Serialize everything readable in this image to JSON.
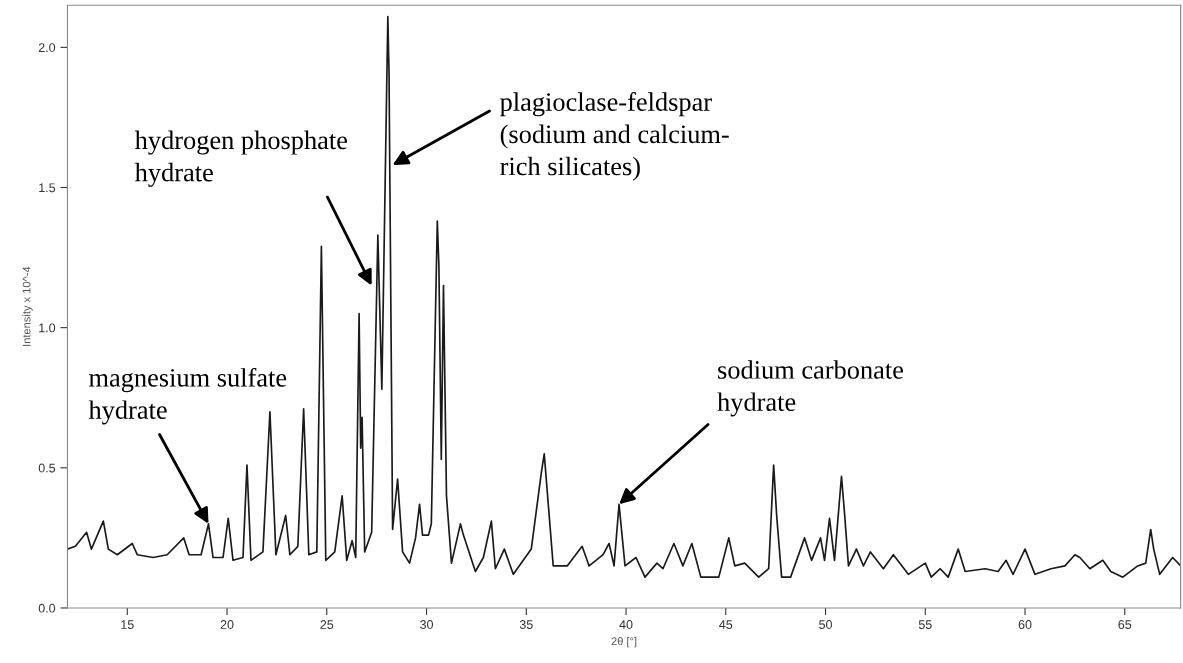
{
  "chart_data": {
    "type": "line",
    "xlabel": "2θ [°]",
    "ylabel": "Intensity x 10^-4",
    "xlim": [
      12.0,
      67.8
    ],
    "ylim": [
      0,
      2.15
    ],
    "xticks": [
      15,
      20,
      25,
      30,
      35,
      40,
      45,
      50,
      55,
      60,
      65
    ],
    "yticks": [
      {
        "value": 0,
        "label": "0.0"
      },
      0.5,
      {
        "value": 1,
        "label": "1.0"
      },
      1.5,
      {
        "value": 2,
        "label": "2.0"
      }
    ],
    "grid": false,
    "marker": "none",
    "line_style": "solid",
    "series": [
      {
        "color": "#1a1a1a",
        "x": [
          12.0,
          12.4,
          12.96,
          13.2,
          13.8,
          14.05,
          14.5,
          15.25,
          15.5,
          16.3,
          17.0,
          17.83,
          18.1,
          18.7,
          19.07,
          19.3,
          19.8,
          20.06,
          20.3,
          20.8,
          21.0,
          21.2,
          21.8,
          22.15,
          22.45,
          22.94,
          23.15,
          23.55,
          23.84,
          24.1,
          24.5,
          24.73,
          24.95,
          25.4,
          25.77,
          26.0,
          26.27,
          26.45,
          26.62,
          26.7,
          26.77,
          26.9,
          27.25,
          27.56,
          27.76,
          28.06,
          28.12,
          28.3,
          28.55,
          28.8,
          29.15,
          29.45,
          29.65,
          29.8,
          30.1,
          30.24,
          30.54,
          30.62,
          30.74,
          30.85,
          31.0,
          31.25,
          31.7,
          31.85,
          32.45,
          32.85,
          33.25,
          33.45,
          33.9,
          34.35,
          35.25,
          35.75,
          35.9,
          36.35,
          37.05,
          37.8,
          38.15,
          38.85,
          39.15,
          39.4,
          39.65,
          39.95,
          40.5,
          40.95,
          41.55,
          41.85,
          42.4,
          42.85,
          43.3,
          43.75,
          44.65,
          45.15,
          45.45,
          45.95,
          46.65,
          47.15,
          47.4,
          47.55,
          47.8,
          48.25,
          48.75,
          48.95,
          49.3,
          49.75,
          49.95,
          50.2,
          50.45,
          50.8,
          50.95,
          51.15,
          51.55,
          51.9,
          52.25,
          52.9,
          53.4,
          54.15,
          55.0,
          55.3,
          55.75,
          56.15,
          56.65,
          57.0,
          58.0,
          58.65,
          59.05,
          59.4,
          60.0,
          60.5,
          61.3,
          62.0,
          62.5,
          62.75,
          63.25,
          63.9,
          64.3,
          64.9,
          65.65,
          66.05,
          66.3,
          66.45,
          66.75,
          67.4,
          67.8
        ],
        "values": [
          0.21,
          0.22,
          0.27,
          0.21,
          0.31,
          0.21,
          0.19,
          0.23,
          0.19,
          0.18,
          0.19,
          0.25,
          0.19,
          0.19,
          0.3,
          0.18,
          0.18,
          0.32,
          0.17,
          0.18,
          0.51,
          0.17,
          0.2,
          0.7,
          0.19,
          0.33,
          0.19,
          0.22,
          0.71,
          0.19,
          0.2,
          1.29,
          0.17,
          0.2,
          0.4,
          0.17,
          0.24,
          0.18,
          1.05,
          0.57,
          0.68,
          0.2,
          0.27,
          1.33,
          0.78,
          2.11,
          1.91,
          0.28,
          0.46,
          0.2,
          0.16,
          0.25,
          0.37,
          0.26,
          0.26,
          0.3,
          1.38,
          1.22,
          0.53,
          1.15,
          0.4,
          0.16,
          0.3,
          0.26,
          0.13,
          0.18,
          0.31,
          0.14,
          0.21,
          0.12,
          0.21,
          0.48,
          0.55,
          0.15,
          0.15,
          0.22,
          0.15,
          0.19,
          0.23,
          0.15,
          0.37,
          0.15,
          0.18,
          0.11,
          0.16,
          0.14,
          0.23,
          0.15,
          0.23,
          0.11,
          0.11,
          0.25,
          0.15,
          0.16,
          0.11,
          0.14,
          0.51,
          0.33,
          0.11,
          0.11,
          0.21,
          0.25,
          0.17,
          0.25,
          0.17,
          0.32,
          0.17,
          0.47,
          0.34,
          0.15,
          0.21,
          0.15,
          0.2,
          0.14,
          0.19,
          0.12,
          0.16,
          0.11,
          0.14,
          0.11,
          0.21,
          0.13,
          0.14,
          0.13,
          0.17,
          0.12,
          0.21,
          0.12,
          0.14,
          0.15,
          0.19,
          0.18,
          0.14,
          0.17,
          0.13,
          0.11,
          0.15,
          0.16,
          0.28,
          0.21,
          0.12,
          0.18,
          0.15
        ]
      }
    ],
    "annotations": [
      {
        "text": "magnesium sulfate\nhydrate",
        "x": 19.07,
        "y": 0.3
      },
      {
        "text": "hydrogen phosphate\nhydrate",
        "x": 27.25,
        "y": 1.15
      },
      {
        "text": "plagioclase-feldspar\n(sodium and calcium-\nrich silicates)",
        "x": 28.3,
        "y": 1.58
      },
      {
        "text": "sodium carbonate\nhydrate",
        "x": 39.65,
        "y": 0.37
      }
    ]
  }
}
